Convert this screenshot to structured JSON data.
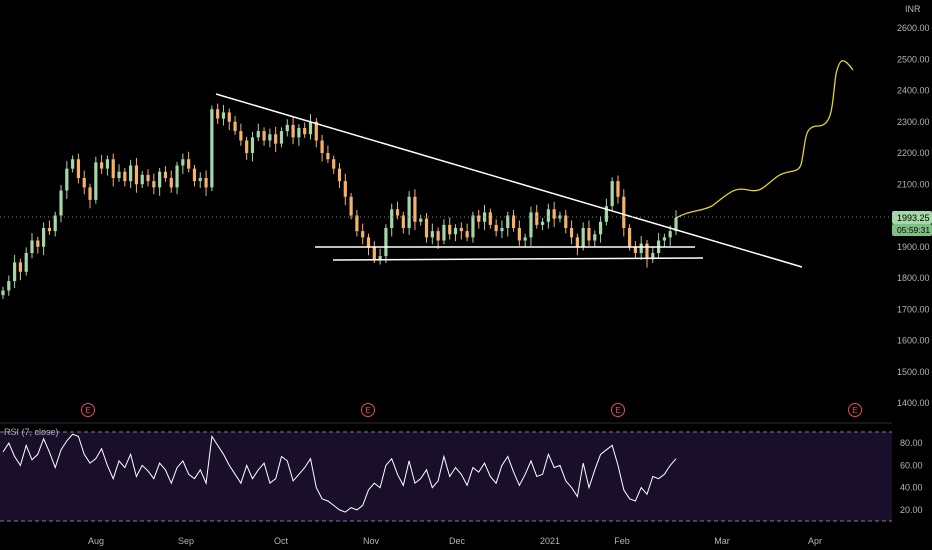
{
  "currency_label": "INR",
  "last_price_label": "1993.25",
  "countdown_label": "05:59:31",
  "earnings_marker": "E",
  "colors": {
    "background": "#000000",
    "up_candle": "#a5d6a7",
    "down_candle": "#f6b26b",
    "trendline": "#ffffff",
    "projection": "#e0d238",
    "rsi_line": "#ffffff",
    "rsi_band": "#1a0f2a",
    "price_label_bg": "#a5d6a7",
    "earnings": "#e0505a"
  },
  "chart_data": [
    {
      "type": "candlestick",
      "ylim": [
        1350,
        2700
      ],
      "y_ticks": [
        "2600.00",
        "2500.00",
        "2400.00",
        "2300.00",
        "2200.00",
        "2100.00",
        "2000.00",
        "1900.00",
        "1800.00",
        "1700.00",
        "1600.00",
        "1500.00",
        "1400.00"
      ],
      "x_ticks": [
        "Aug",
        "Sep",
        "Oct",
        "Nov",
        "Dec",
        "2021",
        "Feb",
        "Mar",
        "Apr"
      ],
      "closes": [
        1760,
        1790,
        1850,
        1820,
        1880,
        1920,
        1900,
        1960,
        1950,
        2000,
        2080,
        2150,
        2180,
        2120,
        2090,
        2050,
        2170,
        2150,
        2180,
        2120,
        2140,
        2110,
        2160,
        2100,
        2130,
        2110,
        2090,
        2140,
        2120,
        2090,
        2160,
        2180,
        2150,
        2110,
        2120,
        2090,
        2340,
        2310,
        2330,
        2300,
        2270,
        2240,
        2200,
        2250,
        2270,
        2240,
        2260,
        2230,
        2270,
        2290,
        2250,
        2280,
        2260,
        2300,
        2240,
        2200,
        2180,
        2150,
        2110,
        2060,
        2000,
        1950,
        1930,
        1900,
        1860,
        1870,
        1960,
        2020,
        2000,
        1960,
        2060,
        1980,
        1990,
        1930,
        1950,
        1920,
        1970,
        1940,
        1960,
        1950,
        1930,
        2000,
        1980,
        2010,
        1970,
        1950,
        1960,
        2000,
        1960,
        1920,
        1930,
        2010,
        1970,
        1980,
        2020,
        1990,
        2000,
        1960,
        1930,
        1900,
        1960,
        1920,
        1940,
        1980,
        2030,
        2110,
        2060,
        1960,
        1900,
        1880,
        1910,
        1860,
        1880,
        1920,
        1930,
        1950,
        1993
      ],
      "date_range": [
        "2020-07-15",
        "2021-02-12"
      ]
    },
    {
      "type": "line",
      "title": "RSI (7, close)",
      "ylim": [
        10,
        95
      ],
      "y_ticks": [
        "80.00",
        "60.00",
        "40.00",
        "20.00"
      ],
      "bands": [
        90,
        10
      ],
      "values": [
        72,
        80,
        68,
        60,
        78,
        65,
        70,
        84,
        72,
        58,
        74,
        82,
        88,
        86,
        70,
        62,
        66,
        75,
        60,
        48,
        64,
        58,
        70,
        50,
        60,
        55,
        48,
        62,
        56,
        44,
        58,
        64,
        52,
        48,
        56,
        44,
        86,
        78,
        70,
        60,
        52,
        44,
        60,
        48,
        56,
        62,
        44,
        48,
        68,
        64,
        46,
        52,
        58,
        66,
        40,
        30,
        28,
        24,
        20,
        18,
        22,
        20,
        24,
        38,
        44,
        40,
        60,
        66,
        52,
        42,
        64,
        44,
        48,
        56,
        40,
        46,
        68,
        50,
        58,
        52,
        42,
        58,
        54,
        62,
        50,
        44,
        60,
        68,
        54,
        42,
        52,
        64,
        50,
        52,
        70,
        58,
        60,
        46,
        40,
        32,
        62,
        40,
        56,
        70,
        74,
        78,
        60,
        38,
        30,
        28,
        40,
        34,
        50,
        48,
        52,
        60,
        66
      ]
    }
  ]
}
